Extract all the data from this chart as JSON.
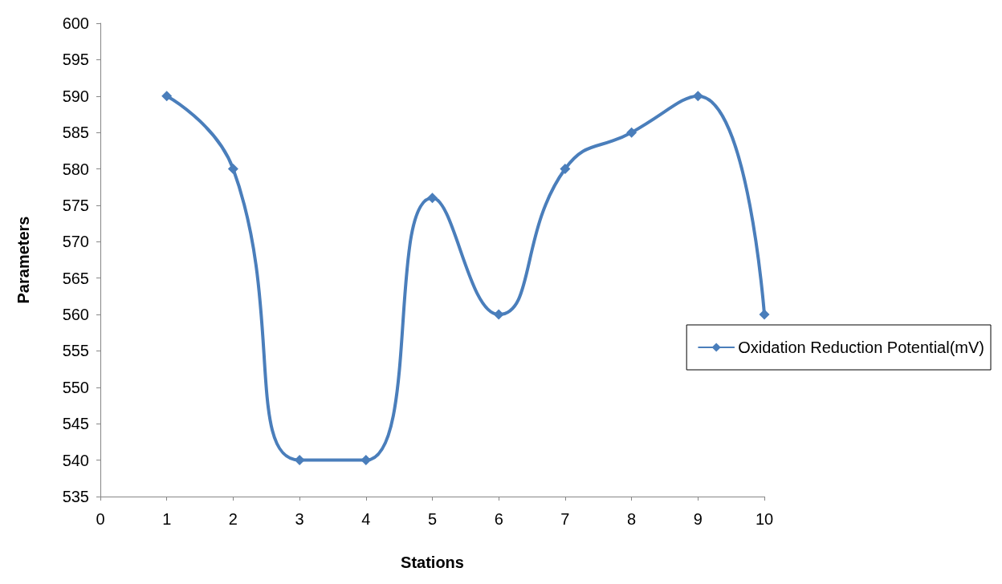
{
  "chart_data": {
    "type": "line",
    "xlabel": "Stations",
    "ylabel": "Parameters",
    "x": [
      1,
      2,
      3,
      4,
      5,
      6,
      7,
      8,
      9,
      10
    ],
    "series": [
      {
        "name": "Oxidation Reduction Potential(mV)",
        "color": "#4a7ebb",
        "values": [
          590,
          580,
          540,
          540,
          576,
          560,
          580,
          585,
          590,
          560
        ]
      }
    ],
    "xlim": [
      0,
      10
    ],
    "xticks": [
      0,
      1,
      2,
      3,
      4,
      5,
      6,
      7,
      8,
      9,
      10
    ],
    "ylim": [
      535,
      600
    ],
    "yticks": [
      535,
      540,
      545,
      550,
      555,
      560,
      565,
      570,
      575,
      580,
      585,
      590,
      595,
      600
    ],
    "legend": "right",
    "marker": "diamond",
    "line_style": "solid",
    "grid": false
  }
}
